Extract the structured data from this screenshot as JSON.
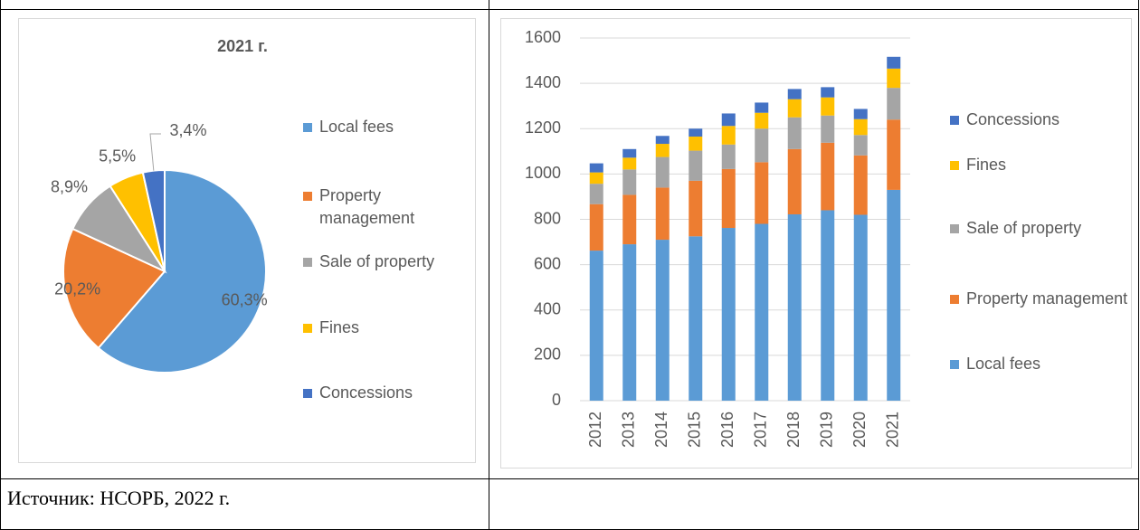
{
  "chart_data": [
    {
      "type": "pie",
      "title": "2021 г.",
      "categories": [
        "Local fees",
        "Property management",
        "Sale of property",
        "Fines",
        "Concessions"
      ],
      "values": [
        60.3,
        20.2,
        8.9,
        5.5,
        3.4
      ],
      "value_labels": [
        "60,3%",
        "20,2%",
        "8,9%",
        "5,5%",
        "3,4%"
      ],
      "colors": [
        "#5b9bd5",
        "#ed7d31",
        "#a5a5a5",
        "#ffc000",
        "#4472c4"
      ]
    },
    {
      "type": "stacked_bar",
      "categories": [
        "2012",
        "2013",
        "2014",
        "2015",
        "2016",
        "2017",
        "2018",
        "2019",
        "2020",
        "2021"
      ],
      "series": [
        {
          "name": "Local fees",
          "color": "#5b9bd5",
          "values": [
            662,
            690,
            710,
            725,
            762,
            780,
            822,
            840,
            820,
            930
          ]
        },
        {
          "name": "Property management",
          "color": "#ed7d31",
          "values": [
            205,
            218,
            230,
            245,
            260,
            272,
            288,
            298,
            262,
            310
          ]
        },
        {
          "name": "Sale of property",
          "color": "#a5a5a5",
          "values": [
            90,
            112,
            135,
            133,
            108,
            148,
            140,
            120,
            90,
            140
          ]
        },
        {
          "name": "Fines",
          "color": "#ffc000",
          "values": [
            50,
            52,
            58,
            62,
            82,
            70,
            80,
            80,
            70,
            85
          ]
        },
        {
          "name": "Concessions",
          "color": "#4472c4",
          "values": [
            40,
            38,
            35,
            35,
            55,
            45,
            45,
            45,
            45,
            52
          ]
        }
      ],
      "ylim": [
        0,
        1600
      ],
      "yticks": [
        0,
        200,
        400,
        600,
        800,
        1000,
        1200,
        1400,
        1600
      ],
      "grid": true
    }
  ],
  "source": "Источник: НСОРБ, 2022 г."
}
